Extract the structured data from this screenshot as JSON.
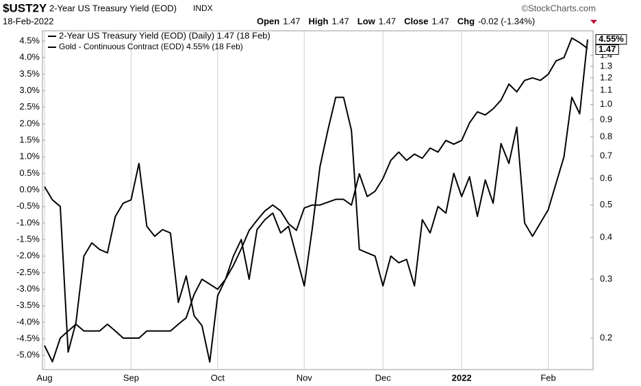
{
  "chart_data": {
    "type": "line",
    "symbol": "$UST2Y",
    "title": "2-Year US Treasury Yield (EOD)",
    "exchange": "INDX",
    "source": "©StockCharts.com",
    "date": "18-Feb-2022",
    "quote": [
      {
        "label": "Open",
        "value": 1.47
      },
      {
        "label": "High",
        "value": 1.47
      },
      {
        "label": "Low",
        "value": 1.47
      },
      {
        "label": "Close",
        "value": 1.47
      },
      {
        "label": "Chg",
        "value": "-0.02 (-1.34%)"
      }
    ],
    "categories": [
      "Aug",
      null,
      null,
      null,
      null,
      null,
      null,
      null,
      null,
      null,
      null,
      "Sep",
      null,
      null,
      null,
      null,
      null,
      null,
      null,
      null,
      null,
      null,
      "Oct",
      null,
      null,
      null,
      null,
      null,
      null,
      null,
      null,
      null,
      null,
      "Nov",
      null,
      null,
      null,
      null,
      null,
      null,
      null,
      null,
      null,
      "Dec",
      null,
      null,
      null,
      null,
      null,
      null,
      null,
      null,
      null,
      "2022",
      null,
      null,
      null,
      null,
      null,
      null,
      null,
      null,
      null,
      null,
      "Feb",
      null,
      null,
      null,
      null,
      null
    ],
    "series": [
      {
        "name": "2-Year US Treasury Yield (EOD) (Daily) 1.47 (18 Feb)",
        "color": "#000000",
        "axis": "y2",
        "last_label": "1.47",
        "values": [
          0.19,
          0.17,
          0.2,
          0.21,
          0.22,
          0.21,
          0.21,
          0.21,
          0.22,
          0.21,
          0.2,
          0.2,
          0.2,
          0.21,
          0.21,
          0.21,
          0.21,
          0.22,
          0.23,
          0.27,
          0.3,
          0.29,
          0.28,
          0.3,
          0.33,
          0.37,
          0.42,
          0.45,
          0.48,
          0.5,
          0.48,
          0.44,
          0.42,
          0.49,
          0.5,
          0.5,
          0.51,
          0.52,
          0.52,
          0.5,
          0.62,
          0.53,
          0.55,
          0.6,
          0.68,
          0.72,
          0.68,
          0.71,
          0.69,
          0.74,
          0.72,
          0.78,
          0.76,
          0.78,
          0.88,
          0.95,
          0.93,
          0.97,
          1.03,
          1.15,
          1.09,
          1.18,
          1.2,
          1.18,
          1.23,
          1.35,
          1.38,
          1.58,
          1.53,
          1.47
        ]
      },
      {
        "name": "Gold - Continuous Contract (EOD) 4.55% (18 Feb)",
        "color": "#000000",
        "last_label": "4.55%",
        "values": [
          0.1,
          -0.3,
          -0.5,
          -4.9,
          -4.0,
          -2.0,
          -1.6,
          -1.8,
          -1.9,
          -0.8,
          -0.4,
          -0.3,
          0.8,
          -1.1,
          -1.4,
          -1.2,
          -1.3,
          -3.4,
          -2.6,
          -3.8,
          -4.1,
          -5.2,
          -3.2,
          -2.7,
          -2.0,
          -1.5,
          -2.7,
          -1.2,
          -0.9,
          -0.7,
          -1.3,
          -1.1,
          -2.0,
          -2.9,
          -1.2,
          0.7,
          1.8,
          2.8,
          2.8,
          1.8,
          -1.8,
          -1.9,
          -2.0,
          -2.9,
          -2.0,
          -2.2,
          -2.1,
          -2.9,
          -0.9,
          -1.3,
          -0.5,
          -0.7,
          0.5,
          -0.2,
          0.4,
          -0.8,
          0.3,
          -0.4,
          1.4,
          0.8,
          1.9,
          -1.0,
          -1.4,
          -1.0,
          -0.6,
          0.2,
          1.0,
          2.8,
          2.3,
          4.55
        ]
      }
    ],
    "ylim": [
      -5.43,
      4.81
    ],
    "yticks": [
      {
        "value": -5,
        "label": "-5.0%"
      },
      {
        "value": -4.5,
        "label": "-4.5%"
      },
      {
        "value": -4,
        "label": "-4.0%"
      },
      {
        "value": -3.5,
        "label": "-3.5%"
      },
      {
        "value": -3,
        "label": "-3.0%"
      },
      {
        "value": -2.5,
        "label": "-2.5%"
      },
      {
        "value": -2,
        "label": "-2.0%"
      },
      {
        "value": -1.5,
        "label": "-1.5%"
      },
      {
        "value": -1,
        "label": "-1.0%"
      },
      {
        "value": -0.5,
        "label": "-0.5%"
      },
      {
        "value": 0,
        "label": "0.0%"
      },
      {
        "value": 0.5,
        "label": "0.5%"
      },
      {
        "value": 1,
        "label": "1.0%"
      },
      {
        "value": 1.5,
        "label": "1.5%"
      },
      {
        "value": 2,
        "label": "2.0%"
      },
      {
        "value": 2.5,
        "label": "2.5%"
      },
      {
        "value": 3,
        "label": "3.0%"
      },
      {
        "value": 3.5,
        "label": "3.5%"
      },
      {
        "value": 4,
        "label": "4.0%"
      },
      {
        "value": 4.5,
        "label": "4.5%"
      }
    ],
    "y2lim": [
      0.161,
      1.66
    ],
    "y2log": true,
    "y2ticks": [
      0.2,
      0.3,
      0.4,
      0.5,
      0.6,
      0.7,
      0.8,
      0.9,
      {
        "value": 1,
        "label": "1.0"
      },
      1.1,
      1.2,
      1.3,
      1.4
    ],
    "grid": true
  }
}
